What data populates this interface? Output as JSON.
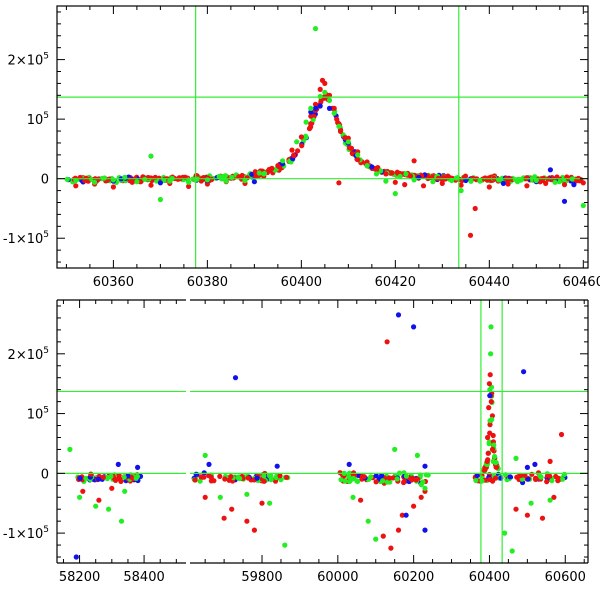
{
  "colors": {
    "red": "#ee1111",
    "blue": "#1111ee",
    "green": "#22ee22",
    "guide": "#33ee33",
    "frame": "#000000"
  },
  "chart_data": [
    {
      "id": "top",
      "type": "scatter",
      "xlim": [
        60348,
        60461
      ],
      "ylim": [
        -150000,
        290000
      ],
      "x_ticks": [
        60360,
        60380,
        60400,
        60420,
        60440,
        60460
      ],
      "x_tick_labels": [
        "60360",
        "60380",
        "60400",
        "60420",
        "60440",
        "60460"
      ],
      "y_ticks": [
        -100000,
        0,
        100000,
        200000
      ],
      "y_tick_labels": [
        {
          "base": "-1×10",
          "exp": "5"
        },
        {
          "base": "0",
          "exp": ""
        },
        {
          "base": "10",
          "exp": "5"
        },
        {
          "base": "2×10",
          "exp": "5"
        }
      ],
      "hlines": [
        0,
        137000
      ],
      "vlines": [
        60377.5,
        60433.5
      ],
      "model": {
        "x0": 60405,
        "amp": 140000,
        "width": 4.2,
        "band": [
          60350,
          60460
        ]
      },
      "series": [
        {
          "color": "red",
          "points": [
            [
              60352,
              -12000
            ],
            [
              60356,
              -9000
            ],
            [
              60360,
              -14000
            ],
            [
              60364,
              -6000
            ],
            [
              60368,
              -11000
            ],
            [
              60372,
              -8000
            ],
            [
              60376,
              -13000
            ],
            [
              60380,
              -9000
            ],
            [
              60384,
              -5000
            ],
            [
              60388,
              -8000
            ],
            [
              60392,
              4000
            ],
            [
              60395,
              22000
            ],
            [
              60398,
              48000
            ],
            [
              60400,
              70000
            ],
            [
              60402,
              105000
            ],
            [
              60403,
              125000
            ],
            [
              60404,
              150000
            ],
            [
              60404.5,
              165000
            ],
            [
              60405,
              160000
            ],
            [
              60406,
              140000
            ],
            [
              60407,
              118000
            ],
            [
              60408,
              92000
            ],
            [
              60410,
              68000
            ],
            [
              60412,
              45000
            ],
            [
              60414,
              28000
            ],
            [
              60416,
              15000
            ],
            [
              60418,
              8000
            ],
            [
              60420,
              -6000
            ],
            [
              60422,
              -10000
            ],
            [
              60426,
              -12000
            ],
            [
              60430,
              -8000
            ],
            [
              60434,
              -11000
            ],
            [
              60436,
              -95000
            ],
            [
              60437,
              -50000
            ],
            [
              60440,
              -14000
            ],
            [
              60444,
              -9000
            ],
            [
              60448,
              -12000
            ],
            [
              60452,
              -8000
            ],
            [
              60456,
              -10000
            ],
            [
              60460,
              -7000
            ],
            [
              60424,
              30000
            ],
            [
              60408,
              -7000
            ]
          ]
        },
        {
          "color": "blue",
          "points": [
            [
              60360,
              -4000
            ],
            [
              60370,
              -7000
            ],
            [
              60380,
              -3000
            ],
            [
              60390,
              -5000
            ],
            [
              60396,
              25000
            ],
            [
              60402,
              112000
            ],
            [
              60403,
              118000
            ],
            [
              60404,
              122000
            ],
            [
              60406,
              118000
            ],
            [
              60410,
              60000
            ],
            [
              60415,
              20000
            ],
            [
              60425,
              2000
            ],
            [
              60435,
              -3000
            ],
            [
              60443,
              -8000
            ],
            [
              60450,
              -5000
            ],
            [
              60453,
              15000
            ],
            [
              60456,
              -38000
            ],
            [
              60458,
              -10000
            ]
          ]
        },
        {
          "color": "green",
          "points": [
            [
              60352,
              -3000
            ],
            [
              60356,
              -6000
            ],
            [
              60360,
              -2000
            ],
            [
              60365,
              -5000
            ],
            [
              60368,
              38000
            ],
            [
              60370,
              -35000
            ],
            [
              60372,
              -4000
            ],
            [
              60376,
              -6000
            ],
            [
              60380,
              -2000
            ],
            [
              60384,
              -4000
            ],
            [
              60388,
              -3000
            ],
            [
              60392,
              8000
            ],
            [
              60396,
              30000
            ],
            [
              60399,
              62000
            ],
            [
              60401,
              95000
            ],
            [
              60402,
              118000
            ],
            [
              60403,
              252000
            ],
            [
              60404,
              138000
            ],
            [
              60405,
              145000
            ],
            [
              60406,
              132000
            ],
            [
              60407,
              110000
            ],
            [
              60408,
              88000
            ],
            [
              60410,
              62000
            ],
            [
              60412,
              40000
            ],
            [
              60414,
              22000
            ],
            [
              60416,
              8000
            ],
            [
              60418,
              -4000
            ],
            [
              60420,
              -25000
            ],
            [
              60424,
              -2000
            ],
            [
              60428,
              -5000
            ],
            [
              60432,
              -3000
            ],
            [
              60434,
              -20000
            ],
            [
              60438,
              -4000
            ],
            [
              60442,
              -2000
            ],
            [
              60446,
              -5000
            ],
            [
              60450,
              -3000
            ],
            [
              60454,
              -6000
            ],
            [
              60460,
              -45000
            ]
          ]
        }
      ]
    },
    {
      "id": "bottom",
      "type": "scatter",
      "broken_axis": true,
      "ylim": [
        -150000,
        290000
      ],
      "segments": [
        {
          "xlim": [
            58130,
            58530
          ],
          "x_ticks": [
            58200,
            58400
          ],
          "x_tick_labels": [
            "58200",
            "58400"
          ]
        },
        {
          "xlim": [
            59610,
            60660
          ],
          "x_ticks": [
            59800,
            60000,
            60200,
            60400,
            60600
          ],
          "x_tick_labels": [
            "59800",
            "60000",
            "60200",
            "60400",
            "60600"
          ]
        }
      ],
      "y_ticks": [
        -100000,
        0,
        100000,
        200000
      ],
      "y_tick_labels": [
        {
          "base": "-1×10",
          "exp": "5"
        },
        {
          "base": "0",
          "exp": ""
        },
        {
          "base": "10",
          "exp": "5"
        },
        {
          "base": "2×10",
          "exp": "5"
        }
      ],
      "hlines": [
        0,
        137000
      ],
      "vlines": [
        60377.5,
        60433.5
      ],
      "clusters": [
        {
          "segment": 0,
          "x": [
            58180,
            58390
          ],
          "n": 70,
          "spread": 9000
        },
        {
          "segment": 1,
          "x": [
            59620,
            59870
          ],
          "n": 80,
          "spread": 11000
        },
        {
          "segment": 1,
          "x": [
            60000,
            60240
          ],
          "n": 80,
          "spread": 13000
        },
        {
          "segment": 1,
          "x": [
            60350,
            60600
          ],
          "n": 70,
          "spread": 12000
        }
      ],
      "series": [
        {
          "color": "red",
          "points": [
            [
              58210,
              -30000
            ],
            [
              58300,
              -25000
            ],
            [
              59650,
              -40000
            ],
            [
              59700,
              -75000
            ],
            [
              59760,
              -80000
            ],
            [
              59780,
              -95000
            ],
            [
              59720,
              -60000
            ],
            [
              59800,
              -50000
            ],
            [
              60060,
              -45000
            ],
            [
              60120,
              -105000
            ],
            [
              60140,
              -125000
            ],
            [
              60160,
              -95000
            ],
            [
              60170,
              -70000
            ],
            [
              60200,
              -55000
            ],
            [
              60220,
              -40000
            ],
            [
              60230,
              -30000
            ],
            [
              60130,
              220000
            ],
            [
              60395,
              60000
            ],
            [
              60398,
              110000
            ],
            [
              60400,
              150000
            ],
            [
              60402,
              165000
            ],
            [
              60405,
              120000
            ],
            [
              60408,
              40000
            ],
            [
              60470,
              -60000
            ],
            [
              60500,
              -70000
            ],
            [
              60540,
              -75000
            ],
            [
              60570,
              -40000
            ],
            [
              60590,
              65000
            ],
            [
              60560,
              20000
            ],
            [
              58260,
              -45000
            ]
          ]
        },
        {
          "color": "blue",
          "points": [
            [
              58190,
              -140000
            ],
            [
              58320,
              15000
            ],
            [
              58380,
              10000
            ],
            [
              59730,
              160000
            ],
            [
              59660,
              15000
            ],
            [
              59840,
              12000
            ],
            [
              60160,
              265000
            ],
            [
              60200,
              245000
            ],
            [
              60030,
              15000
            ],
            [
              60230,
              12000
            ],
            [
              60401,
              130000
            ],
            [
              60490,
              170000
            ],
            [
              60500,
              10000
            ],
            [
              60520,
              15000
            ],
            [
              60230,
              -95000
            ],
            [
              60180,
              -70000
            ],
            [
              60430,
              -8000
            ]
          ]
        },
        {
          "color": "green",
          "points": [
            [
              58170,
              40000
            ],
            [
              58250,
              -55000
            ],
            [
              58290,
              -60000
            ],
            [
              58330,
              -80000
            ],
            [
              58340,
              -30000
            ],
            [
              58200,
              -40000
            ],
            [
              59650,
              30000
            ],
            [
              59690,
              -40000
            ],
            [
              59760,
              -35000
            ],
            [
              59820,
              -50000
            ],
            [
              59860,
              -120000
            ],
            [
              60040,
              -40000
            ],
            [
              60080,
              -80000
            ],
            [
              60100,
              -110000
            ],
            [
              60150,
              40000
            ],
            [
              60210,
              30000
            ],
            [
              60230,
              -25000
            ],
            [
              60404,
              245000
            ],
            [
              60403,
              200000
            ],
            [
              60401,
              140000
            ],
            [
              60406,
              90000
            ],
            [
              60410,
              20000
            ],
            [
              60440,
              -100000
            ],
            [
              60460,
              -130000
            ],
            [
              60510,
              -50000
            ],
            [
              60560,
              -45000
            ],
            [
              60470,
              25000
            ]
          ]
        }
      ]
    }
  ]
}
